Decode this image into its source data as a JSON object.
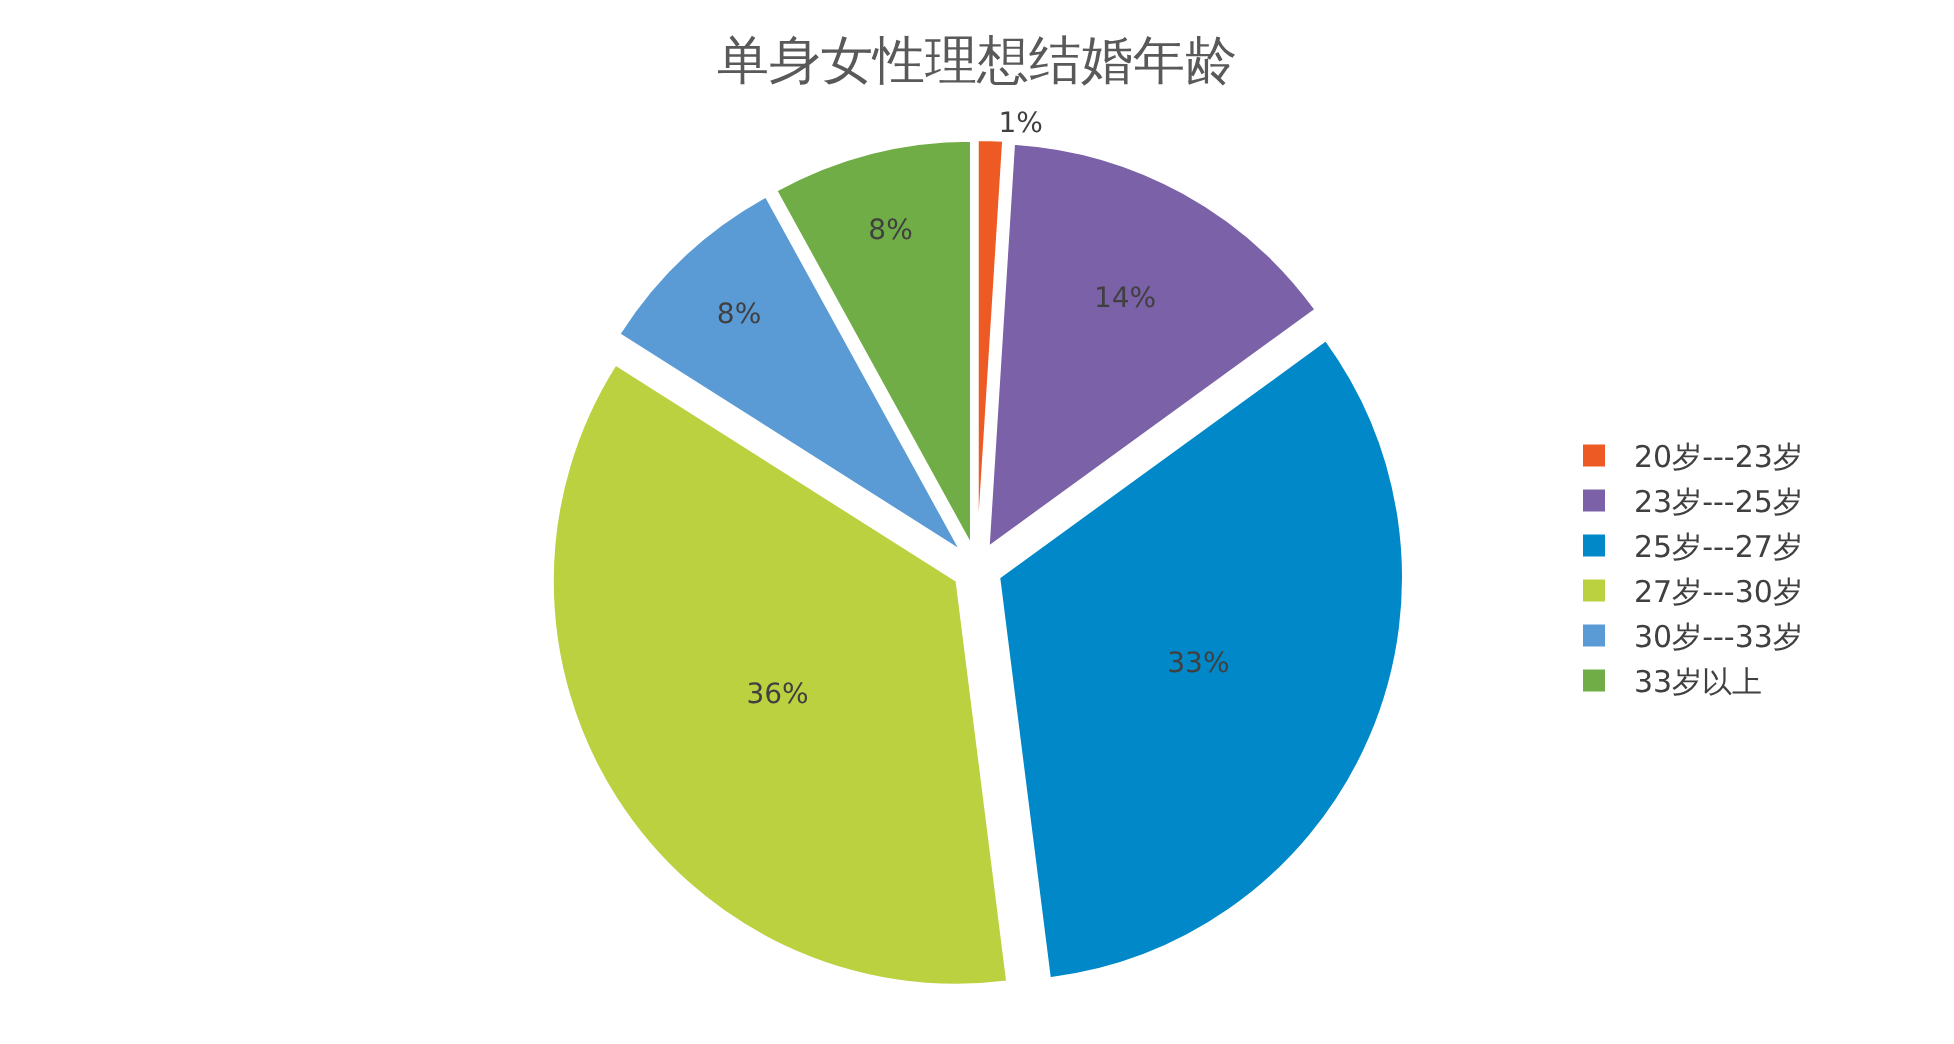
{
  "chart_data": {
    "type": "pie",
    "title": "单身女性理想结婚年龄",
    "categories": [
      "20岁---23岁",
      "23岁---25岁",
      "25岁---27岁",
      "27岁---30岁",
      "30岁---33岁",
      "33岁以上"
    ],
    "values": [
      1,
      14,
      33,
      36,
      8,
      8
    ],
    "value_labels": [
      "1%",
      "14%",
      "33%",
      "36%",
      "8%",
      "8%"
    ],
    "colors": [
      "#ee5a24",
      "#7b62a8",
      "#0088c8",
      "#bcd140",
      "#5b9bd5",
      "#70ad47"
    ],
    "legend": "right"
  }
}
